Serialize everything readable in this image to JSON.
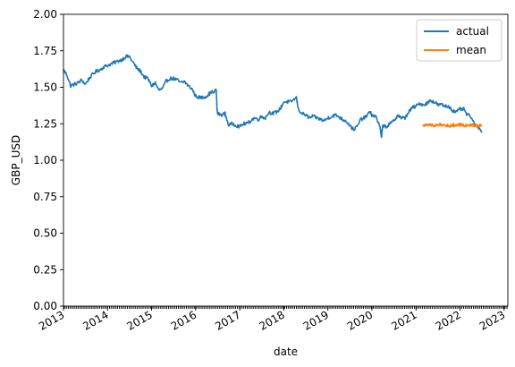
{
  "chart_data": {
    "type": "line",
    "xlabel": "date",
    "ylabel": "GBP_USD",
    "ylim": [
      0.0,
      2.0
    ],
    "xlim": [
      "2013-01-01",
      "2023-02-01"
    ],
    "y_ticks": [
      "0.00",
      "0.25",
      "0.50",
      "0.75",
      "1.00",
      "1.25",
      "1.50",
      "1.75",
      "2.00"
    ],
    "x_ticks": [
      "2013",
      "2014",
      "2015",
      "2016",
      "2017",
      "2018",
      "2019",
      "2020",
      "2021",
      "2022",
      "2023"
    ],
    "legend_position": "top-right",
    "colors": {
      "actual": "#1f77b4",
      "mean": "#ff7f0e"
    },
    "series": [
      {
        "name": "actual",
        "x": [
          "2013-01-01",
          "2013-02-01",
          "2013-03-01",
          "2013-04-01",
          "2013-05-01",
          "2013-06-01",
          "2013-07-01",
          "2013-08-01",
          "2013-09-01",
          "2013-10-01",
          "2013-11-01",
          "2013-12-01",
          "2014-01-01",
          "2014-02-01",
          "2014-03-01",
          "2014-04-01",
          "2014-05-01",
          "2014-06-01",
          "2014-07-01",
          "2014-08-01",
          "2014-09-01",
          "2014-10-01",
          "2014-11-01",
          "2014-12-01",
          "2015-01-01",
          "2015-02-01",
          "2015-03-01",
          "2015-04-01",
          "2015-05-01",
          "2015-06-01",
          "2015-07-01",
          "2015-08-01",
          "2015-09-01",
          "2015-10-01",
          "2015-11-01",
          "2015-12-01",
          "2016-01-01",
          "2016-02-01",
          "2016-03-01",
          "2016-04-01",
          "2016-05-01",
          "2016-06-20",
          "2016-06-27",
          "2016-07-01",
          "2016-08-01",
          "2016-09-01",
          "2016-10-01",
          "2016-11-01",
          "2016-12-01",
          "2017-01-01",
          "2017-02-01",
          "2017-03-01",
          "2017-04-01",
          "2017-05-01",
          "2017-06-01",
          "2017-07-01",
          "2017-08-01",
          "2017-09-01",
          "2017-10-01",
          "2017-11-01",
          "2017-12-01",
          "2018-01-01",
          "2018-02-01",
          "2018-03-01",
          "2018-04-15",
          "2018-05-01",
          "2018-06-01",
          "2018-07-01",
          "2018-08-01",
          "2018-09-01",
          "2018-10-01",
          "2018-11-01",
          "2018-12-01",
          "2019-01-01",
          "2019-02-01",
          "2019-03-01",
          "2019-04-01",
          "2019-05-01",
          "2019-06-01",
          "2019-07-01",
          "2019-08-01",
          "2019-09-01",
          "2019-10-01",
          "2019-11-01",
          "2019-12-15",
          "2020-01-01",
          "2020-02-01",
          "2020-03-10",
          "2020-03-20",
          "2020-04-01",
          "2020-05-01",
          "2020-06-01",
          "2020-07-01",
          "2020-08-01",
          "2020-09-01",
          "2020-10-01",
          "2020-11-01",
          "2020-12-01",
          "2021-01-01",
          "2021-02-01",
          "2021-03-01",
          "2021-04-01",
          "2021-05-01",
          "2021-06-01",
          "2021-07-01",
          "2021-08-01",
          "2021-09-01",
          "2021-10-01",
          "2021-11-01",
          "2021-12-01",
          "2022-01-01",
          "2022-02-01",
          "2022-03-01",
          "2022-04-01",
          "2022-05-01",
          "2022-06-01",
          "2022-07-01"
        ],
        "y": [
          1.62,
          1.58,
          1.51,
          1.52,
          1.53,
          1.55,
          1.52,
          1.56,
          1.59,
          1.61,
          1.62,
          1.64,
          1.65,
          1.66,
          1.67,
          1.68,
          1.69,
          1.71,
          1.71,
          1.67,
          1.63,
          1.61,
          1.57,
          1.56,
          1.51,
          1.53,
          1.48,
          1.49,
          1.54,
          1.56,
          1.56,
          1.55,
          1.53,
          1.54,
          1.51,
          1.49,
          1.44,
          1.43,
          1.43,
          1.44,
          1.46,
          1.48,
          1.35,
          1.32,
          1.31,
          1.32,
          1.24,
          1.25,
          1.24,
          1.23,
          1.25,
          1.25,
          1.27,
          1.29,
          1.28,
          1.3,
          1.29,
          1.33,
          1.32,
          1.33,
          1.35,
          1.4,
          1.4,
          1.4,
          1.43,
          1.35,
          1.32,
          1.31,
          1.29,
          1.3,
          1.29,
          1.28,
          1.27,
          1.29,
          1.3,
          1.31,
          1.3,
          1.28,
          1.27,
          1.24,
          1.21,
          1.23,
          1.28,
          1.29,
          1.33,
          1.31,
          1.3,
          1.23,
          1.15,
          1.24,
          1.23,
          1.25,
          1.27,
          1.31,
          1.29,
          1.29,
          1.33,
          1.36,
          1.37,
          1.39,
          1.38,
          1.39,
          1.41,
          1.4,
          1.38,
          1.38,
          1.37,
          1.37,
          1.34,
          1.33,
          1.35,
          1.35,
          1.31,
          1.3,
          1.24,
          1.23,
          1.2
        ]
      },
      {
        "name": "mean",
        "x": [
          "2021-03-01",
          "2021-04-01",
          "2021-05-01",
          "2021-06-01",
          "2021-07-01",
          "2021-08-01",
          "2021-09-01",
          "2021-10-01",
          "2021-11-01",
          "2021-12-01",
          "2022-01-01",
          "2022-02-01",
          "2022-03-01",
          "2022-04-01",
          "2022-05-01",
          "2022-06-01",
          "2022-07-01"
        ],
        "y": [
          1.24,
          1.24,
          1.245,
          1.235,
          1.24,
          1.245,
          1.24,
          1.235,
          1.24,
          1.24,
          1.245,
          1.24,
          1.235,
          1.24,
          1.24,
          1.235,
          1.24
        ]
      }
    ]
  }
}
